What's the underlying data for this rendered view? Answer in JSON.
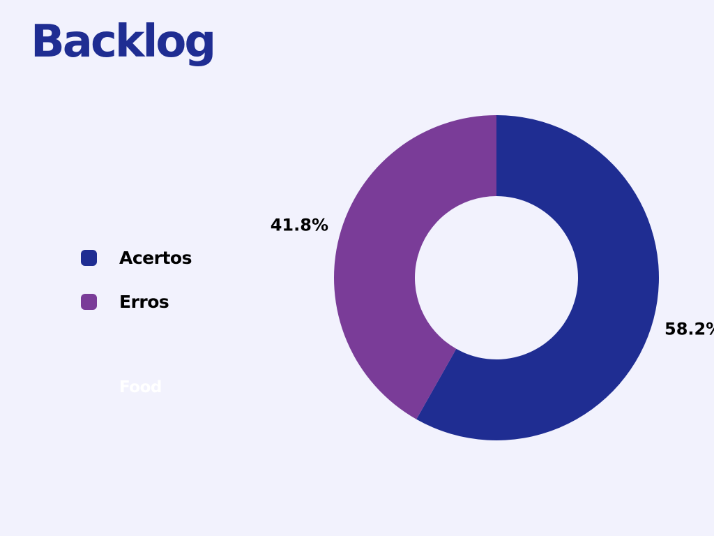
{
  "page": {
    "title": "Backlog",
    "ghost_label": "Food"
  },
  "chart_data": {
    "type": "pie",
    "variant": "donut",
    "title": "",
    "categories": [
      "Acertos",
      "Erros"
    ],
    "values": [
      58.2,
      41.8
    ],
    "value_unit": "%",
    "data_labels": [
      "58.2%",
      "41.8%"
    ],
    "colors": [
      "#1f2d92",
      "#7a3c98"
    ],
    "legend": {
      "position": "left",
      "entries": [
        "Acertos",
        "Erros"
      ]
    },
    "start_angle": "12 o'clock",
    "direction": "clockwise"
  },
  "colors": {
    "background": "#f2f2fd",
    "title": "#1f2d92"
  }
}
